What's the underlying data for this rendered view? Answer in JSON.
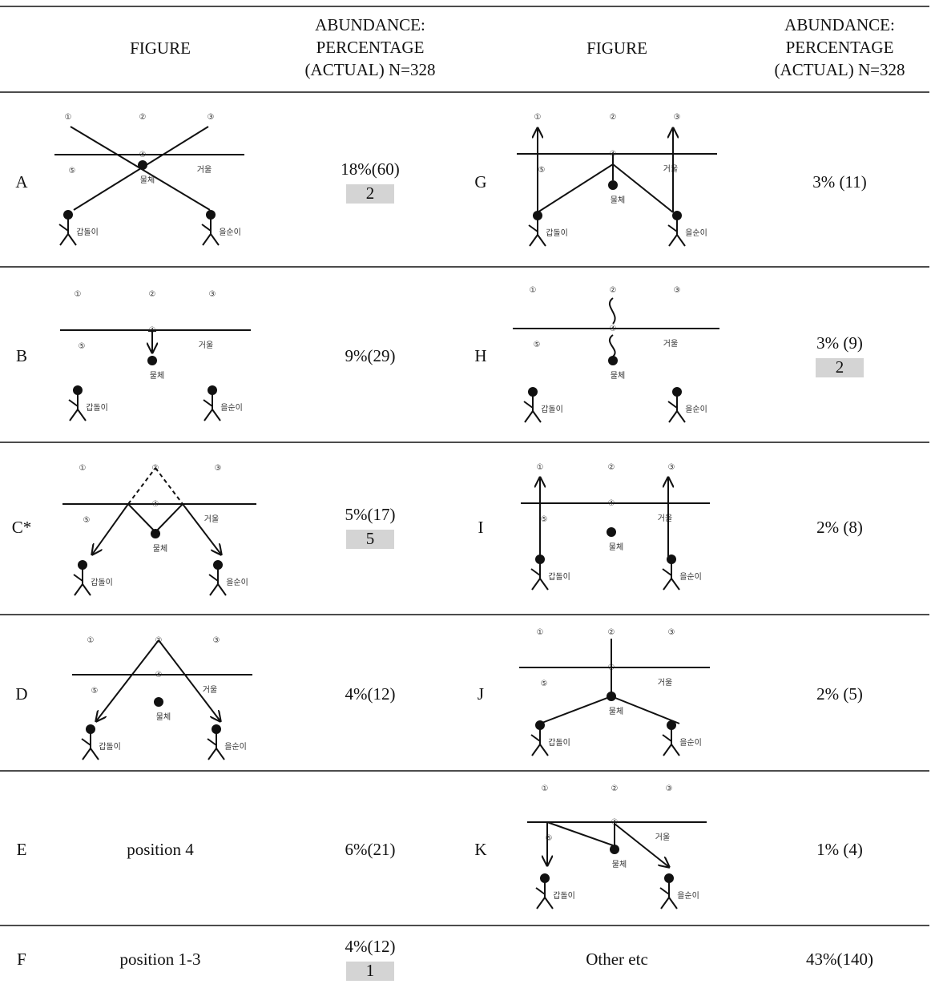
{
  "header": {
    "figure": "FIGURE",
    "abundance": [
      "ABUNDANCE:",
      "PERCENTAGE",
      "(ACTUAL) N=328"
    ]
  },
  "diagram_labels": {
    "person_left": "갑돌이",
    "person_right": "을순이",
    "object": "물체",
    "mirror": "거울",
    "positions": [
      "①",
      "②",
      "③",
      "④",
      "⑤"
    ]
  },
  "rows": [
    {
      "left": {
        "label": "A",
        "abundance": "18%(60)",
        "note": "2"
      },
      "right": {
        "label": "G",
        "abundance": "3% (11)"
      }
    },
    {
      "left": {
        "label": "B",
        "abundance": "9%(29)"
      },
      "right": {
        "label": "H",
        "abundance": "3% (9)",
        "note": "2"
      }
    },
    {
      "left": {
        "label": "C*",
        "abundance": "5%(17)",
        "note": "5"
      },
      "right": {
        "label": "I",
        "abundance": "2% (8)"
      }
    },
    {
      "left": {
        "label": "D",
        "abundance": "4%(12)"
      },
      "right": {
        "label": "J",
        "abundance": "2% (5)"
      }
    },
    {
      "left": {
        "label": "E",
        "figure_text": "position 4",
        "abundance": "6%(21)"
      },
      "right": {
        "label": "K",
        "abundance": "1% (4)"
      }
    },
    {
      "left": {
        "label": "F",
        "figure_text": "position 1-3",
        "abundance": "4%(12)",
        "note": "1"
      },
      "right": {
        "figure_text": "Other etc",
        "abundance": "43%(140)"
      }
    }
  ]
}
